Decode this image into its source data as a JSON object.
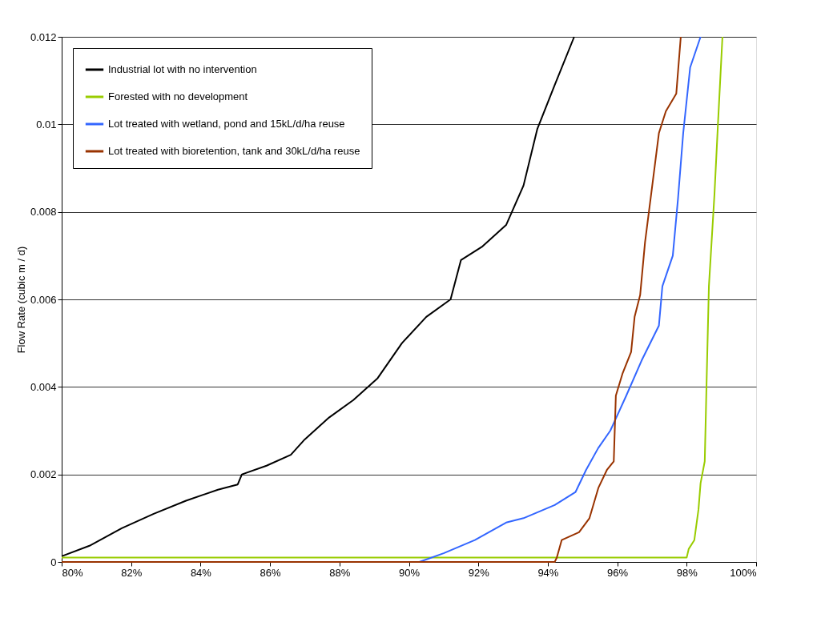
{
  "chart_data": {
    "type": "line",
    "ylabel": "Flow Rate (cubic m / d)",
    "xlim": [
      80,
      100
    ],
    "xticks": [
      {
        "value": 80,
        "label": "80%"
      },
      {
        "value": 82,
        "label": "82%"
      },
      {
        "value": 84,
        "label": "84%"
      },
      {
        "value": 86,
        "label": "86%"
      },
      {
        "value": 88,
        "label": "88%"
      },
      {
        "value": 90,
        "label": "90%"
      },
      {
        "value": 92,
        "label": "92%"
      },
      {
        "value": 94,
        "label": "94%"
      },
      {
        "value": 96,
        "label": "96%"
      },
      {
        "value": 98,
        "label": "98%"
      },
      {
        "value": 100,
        "label": "100%"
      }
    ],
    "ylim": [
      0,
      0.012
    ],
    "yticks": [
      0,
      0.002,
      0.004,
      0.006,
      0.008,
      0.01,
      0.012
    ],
    "grid": "y",
    "legend": "top left",
    "marker": "none",
    "line_style": "solid",
    "series": [
      {
        "name": "Industrial lot with no intervention",
        "color": "#000000",
        "x": [
          80,
          80.8,
          81.73,
          82.65,
          83.58,
          84.5,
          85.07,
          85.19,
          85.9,
          86.6,
          87.0,
          87.7,
          88.4,
          89.1,
          89.8,
          90.5,
          91.2,
          91.5,
          92.1,
          92.8,
          93.3,
          93.7,
          94.2,
          94.76
        ],
        "values": [
          0.00013,
          0.00037,
          0.00077,
          0.0011,
          0.0014,
          0.00165,
          0.00177,
          0.002,
          0.0022,
          0.00245,
          0.0028,
          0.0033,
          0.0037,
          0.0042,
          0.005,
          0.0056,
          0.006,
          0.0069,
          0.0072,
          0.0077,
          0.0086,
          0.0099,
          0.0109,
          0.012
        ]
      },
      {
        "name": "Forested with no development",
        "color": "#99cc00",
        "x": [
          80,
          98.0,
          98.06,
          98.22,
          98.34,
          98.4,
          98.52,
          98.57,
          98.64,
          98.8,
          98.9,
          99.03
        ],
        "values": [
          0.0001,
          0.0001,
          0.0003,
          0.0005,
          0.0012,
          0.0018,
          0.0023,
          0.004,
          0.0063,
          0.0084,
          0.01,
          0.012
        ]
      },
      {
        "name": "Lot treated with wetland, pond and 15kL/d/ha reuse",
        "color": "#3366ff",
        "x": [
          80,
          90.0,
          90.3,
          91.0,
          91.9,
          92.8,
          93.3,
          94.2,
          94.8,
          95.1,
          95.45,
          95.8,
          96.26,
          96.7,
          97.2,
          97.3,
          97.6,
          97.75,
          97.9,
          98.1,
          98.4
        ],
        "values": [
          0,
          0,
          0,
          0.0002,
          0.0005,
          0.0009,
          0.001,
          0.0013,
          0.0016,
          0.0021,
          0.0026,
          0.003,
          0.0038,
          0.0046,
          0.0054,
          0.0063,
          0.007,
          0.0083,
          0.0098,
          0.0113,
          0.012
        ]
      },
      {
        "name": "Lot treated with bioretention, tank and 30kL/d/ha reuse",
        "color": "#993300",
        "x": [
          80,
          94.2,
          94.26,
          94.4,
          94.9,
          95.2,
          95.46,
          95.7,
          95.9,
          95.96,
          96.15,
          96.4,
          96.5,
          96.66,
          96.8,
          96.96,
          97.2,
          97.4,
          97.7,
          97.83
        ],
        "values": [
          0,
          0,
          0.0001,
          0.0005,
          0.00068,
          0.001,
          0.0017,
          0.0021,
          0.0023,
          0.0038,
          0.0043,
          0.0048,
          0.0056,
          0.0061,
          0.0073,
          0.0083,
          0.0098,
          0.0103,
          0.0107,
          0.012
        ]
      }
    ]
  }
}
